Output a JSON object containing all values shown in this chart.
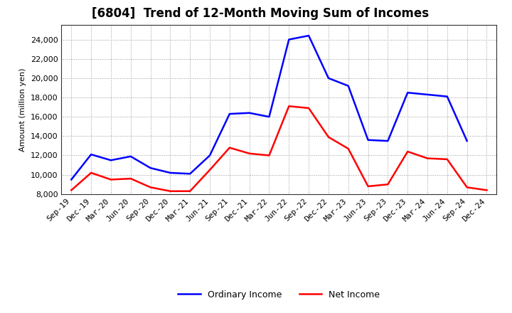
{
  "title": "[6804]  Trend of 12-Month Moving Sum of Incomes",
  "ylabel": "Amount (million yen)",
  "ylim": [
    8000,
    25500
  ],
  "yticks": [
    8000,
    10000,
    12000,
    14000,
    16000,
    18000,
    20000,
    22000,
    24000
  ],
  "x_labels": [
    "Sep-19",
    "Dec-19",
    "Mar-20",
    "Jun-20",
    "Sep-20",
    "Dec-20",
    "Mar-21",
    "Jun-21",
    "Sep-21",
    "Dec-21",
    "Mar-22",
    "Jun-22",
    "Sep-22",
    "Dec-22",
    "Mar-23",
    "Jun-23",
    "Sep-23",
    "Dec-23",
    "Mar-24",
    "Jun-24",
    "Sep-24",
    "Dec-24"
  ],
  "ordinary_income": [
    9500,
    12100,
    11500,
    11900,
    10700,
    10200,
    10100,
    12000,
    16300,
    16400,
    16000,
    24000,
    24400,
    20000,
    19200,
    13600,
    13500,
    18500,
    18300,
    18100,
    13500,
    null
  ],
  "net_income": [
    8400,
    10200,
    9500,
    9600,
    8700,
    8300,
    8300,
    10500,
    12800,
    12200,
    12000,
    17100,
    16900,
    13900,
    12700,
    8800,
    9000,
    12400,
    11700,
    11600,
    8700,
    8400
  ],
  "ordinary_income_color": "#0000FF",
  "net_income_color": "#FF0000",
  "background_color": "#FFFFFF",
  "grid_color": "#999999",
  "title_fontsize": 12,
  "label_fontsize": 8,
  "tick_fontsize": 8,
  "legend_fontsize": 9
}
